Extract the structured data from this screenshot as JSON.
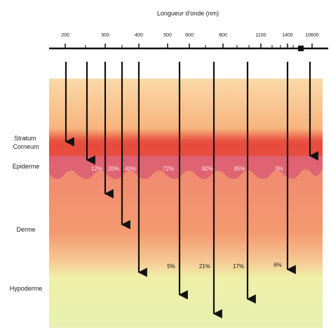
{
  "title": "Longueur d'onde (nm)",
  "wavelength_ticks": [
    {
      "label": "200"
    },
    {
      "label": "300"
    },
    {
      "label": "400"
    },
    {
      "label": "500"
    },
    {
      "label": "600"
    },
    {
      "label": "800"
    },
    {
      "label": "1100"
    },
    {
      "label": "1400"
    },
    {
      "label": "10600"
    }
  ],
  "layers": {
    "stratum_corneum": "Stratum\nCorneum",
    "epidermis": "Epiderme",
    "dermis": "Derme",
    "hypodermis": "Hypoderme"
  },
  "epidermis_percentages": [
    "12%",
    "20%",
    "40%",
    "72%",
    "82%",
    "85%",
    "3%"
  ],
  "deep_percentages": [
    "5%",
    "21%",
    "17%",
    "6%"
  ],
  "colors": {
    "stratum": "#e84a3a",
    "epidermis": "#e06a7a",
    "dermis": "#f2906a",
    "hypodermis": "#e8f0a0",
    "arrow": "#111111"
  }
}
